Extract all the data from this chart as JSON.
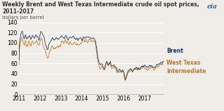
{
  "title": "Weekly Brent and West Texas Intermediate crude oil spot prices, 2011-2017",
  "subtitle": "dollars per barrel",
  "brent_color": "#1a3a5c",
  "wti_color": "#c87820",
  "background_color": "#f0ede8",
  "ylim": [
    0,
    140
  ],
  "yticks": [
    0,
    20,
    40,
    60,
    80,
    100,
    120,
    140
  ],
  "xtick_labels": [
    "2011",
    "2012",
    "2013",
    "2014",
    "2015",
    "2016",
    "2017"
  ],
  "xtick_pos": [
    2011,
    2012,
    2013,
    2014,
    2015,
    2016,
    2017
  ],
  "xlim": [
    2011,
    2017.9
  ],
  "legend_brent": "Brent",
  "legend_wti_line1": "West Texas",
  "legend_wti_line2": "Intermediate",
  "grid_color": "#ffffff",
  "title_fontsize": 5.5,
  "subtitle_fontsize": 5.0,
  "tick_fontsize": 5.5,
  "legend_fontsize": 5.5
}
